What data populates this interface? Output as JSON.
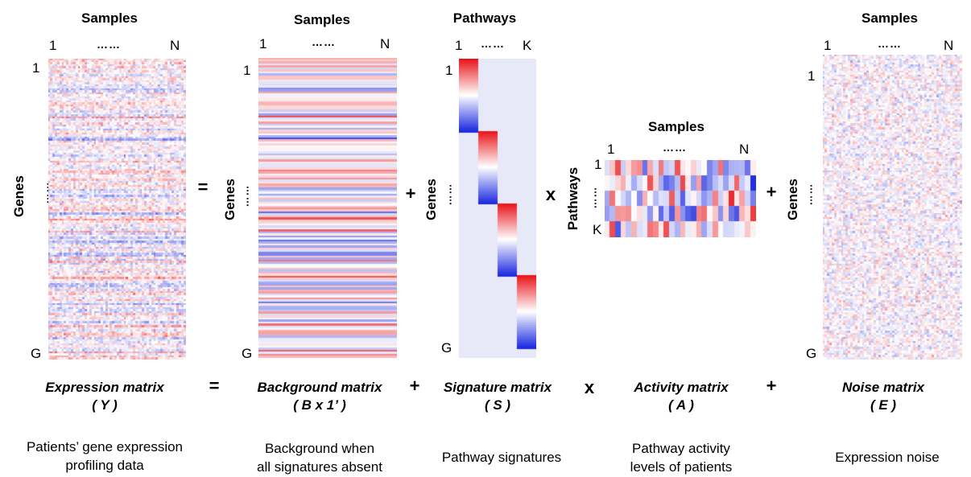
{
  "axis_labels": {
    "samples": "Samples",
    "pathways": "Pathways",
    "genes": "Genes",
    "one": "1",
    "n": "N",
    "k": "K",
    "g": "G",
    "dots": "……"
  },
  "operators": {
    "equals": "=",
    "plus": "+",
    "times": "x"
  },
  "matrices": {
    "expression": {
      "title": "Expression matrix",
      "symbol": "( Y )",
      "description": [
        "Patients’ gene expression",
        "profiling data"
      ]
    },
    "background": {
      "title": "Background matrix",
      "symbol": "( B x 1’ )",
      "description": [
        "Background when",
        "all signatures absent"
      ]
    },
    "signature": {
      "title": "Signature matrix",
      "symbol": "( S )",
      "description": [
        "Pathway signatures"
      ]
    },
    "activity": {
      "title": "Activity matrix",
      "symbol": "( A )",
      "description": [
        "Pathway activity",
        "levels of patients"
      ]
    },
    "noise": {
      "title": "Noise  matrix",
      "symbol": "( E )",
      "description": [
        "Expression noise"
      ]
    }
  },
  "colors": {
    "high": "#e8161b",
    "mid": "#ffffff",
    "low": "#1f2de0",
    "signature_background": "#e7e8f8"
  }
}
